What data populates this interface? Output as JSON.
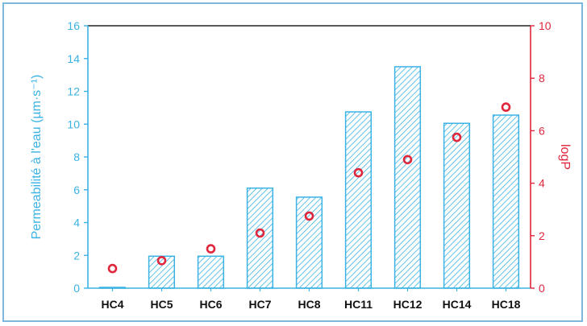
{
  "chart_data": {
    "type": "bar",
    "categories": [
      "HC4",
      "HC5",
      "HC6",
      "HC7",
      "HC8",
      "HC11",
      "HC12",
      "HC14",
      "HC18"
    ],
    "series": [
      {
        "name": "Permeabilité à l'eau",
        "type": "bar",
        "axis": "left",
        "values": [
          0.05,
          1.95,
          1.95,
          6.1,
          5.55,
          10.75,
          13.5,
          10.05,
          10.55
        ]
      },
      {
        "name": "logP",
        "type": "scatter",
        "axis": "right",
        "values": [
          0.75,
          1.05,
          1.5,
          2.1,
          2.75,
          4.4,
          4.9,
          5.75,
          6.9
        ]
      }
    ],
    "ylabel": "Permeabilité à l'eau  (µm·s⁻¹)",
    "ylabel_right": "logP",
    "ylim": [
      0,
      16
    ],
    "ylim_right": [
      0,
      10
    ],
    "yticks": [
      0,
      2,
      4,
      6,
      8,
      10,
      12,
      14,
      16
    ],
    "yticks_right": [
      0,
      2,
      4,
      6,
      8,
      10
    ],
    "colors": {
      "left_axis": "#3bb2e4",
      "right_axis": "#e0263c",
      "bar_hatch": "#3bb2e4",
      "frame": "#7cb8de"
    }
  }
}
